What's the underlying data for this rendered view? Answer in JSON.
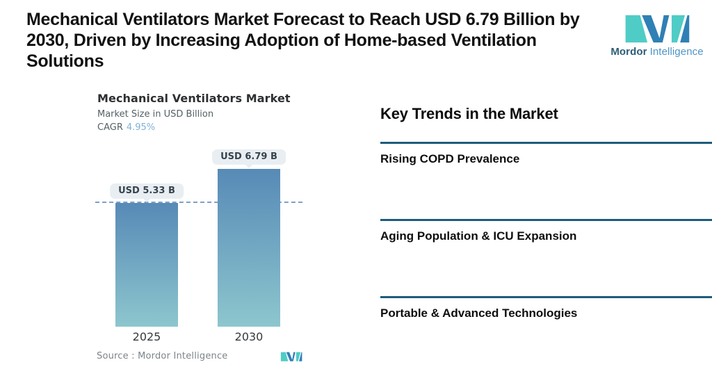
{
  "page": {
    "title_lines": [
      "Mechanical Ventilators Market Forecast to Reach USD 6.79 Billion by",
      "2030, Driven by Increasing Adoption of Home-based Ventilation",
      "Solutions"
    ]
  },
  "brand": {
    "name_primary": "Mordor",
    "name_secondary": "Intelligence",
    "teal": "#4fccc6",
    "blue": "#2f80b5"
  },
  "chart": {
    "title": "Mechanical Ventilators Market",
    "subtitle": "Market Size in USD Billion",
    "cagr_label": "CAGR",
    "cagr_value": "4.95%",
    "source_label": "Source :  Mordor Intelligence"
  },
  "chart_data": {
    "type": "bar",
    "title": "Mechanical Ventilators Market",
    "ylabel": "Market Size in USD Billion",
    "cagr": "4.95%",
    "categories": [
      "2025",
      "2030"
    ],
    "values": [
      5.33,
      6.79
    ],
    "bar_labels": [
      "USD 5.33 B",
      "USD 6.79 B"
    ],
    "units": "USD Billion",
    "ylim": [
      0,
      6.79
    ],
    "reference_line": {
      "value": 5.33,
      "style": "dashed",
      "color": "#7d9fca"
    },
    "bar_gradient_top": "#578ab6",
    "bar_gradient_bottom": "#8dc6ce",
    "grid": false,
    "legend": "none"
  },
  "trends": {
    "heading": "Key Trends in the Market",
    "divider_color": "#1d5c7a",
    "items": [
      "Rising COPD Prevalence",
      "Aging Population & ICU Expansion",
      "Portable & Advanced Technologies"
    ]
  }
}
